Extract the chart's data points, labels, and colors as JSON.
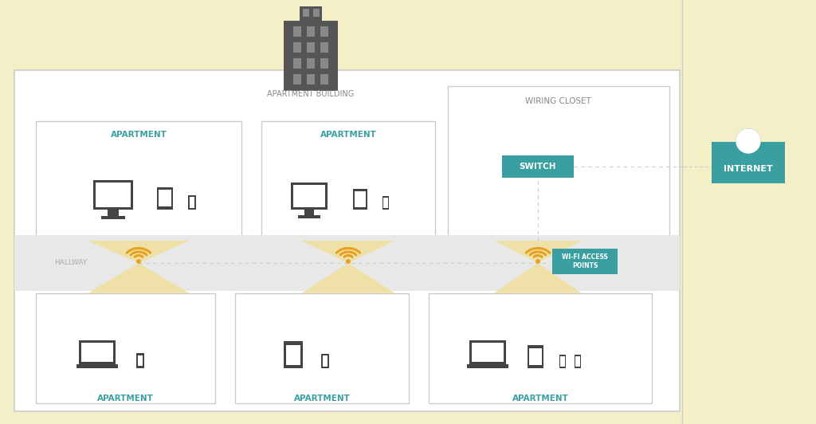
{
  "bg_outer": "#f5efc7",
  "bg_hallway": "#e8e8e8",
  "teal": "#3a9fa0",
  "gold": "#e8a020",
  "gold_light": "#f0e0a0",
  "dark_gray": "#444444",
  "mid_gray": "#888888",
  "light_gray": "#cccccc",
  "text_teal": "#3a9fa0",
  "text_gray": "#aaaaaa",
  "title": "APARTMENT BUILDING",
  "internet_label": "INTERNET",
  "switch_label": "SWITCH",
  "wiring_label": "WIRING CLOSET",
  "hallway_label": "HALLWAY",
  "wifi_label": "WI-FI ACCESS\nPOINTS",
  "apartment_label": "APARTMENT",
  "building_color": "#555555",
  "building_window": "#888888"
}
